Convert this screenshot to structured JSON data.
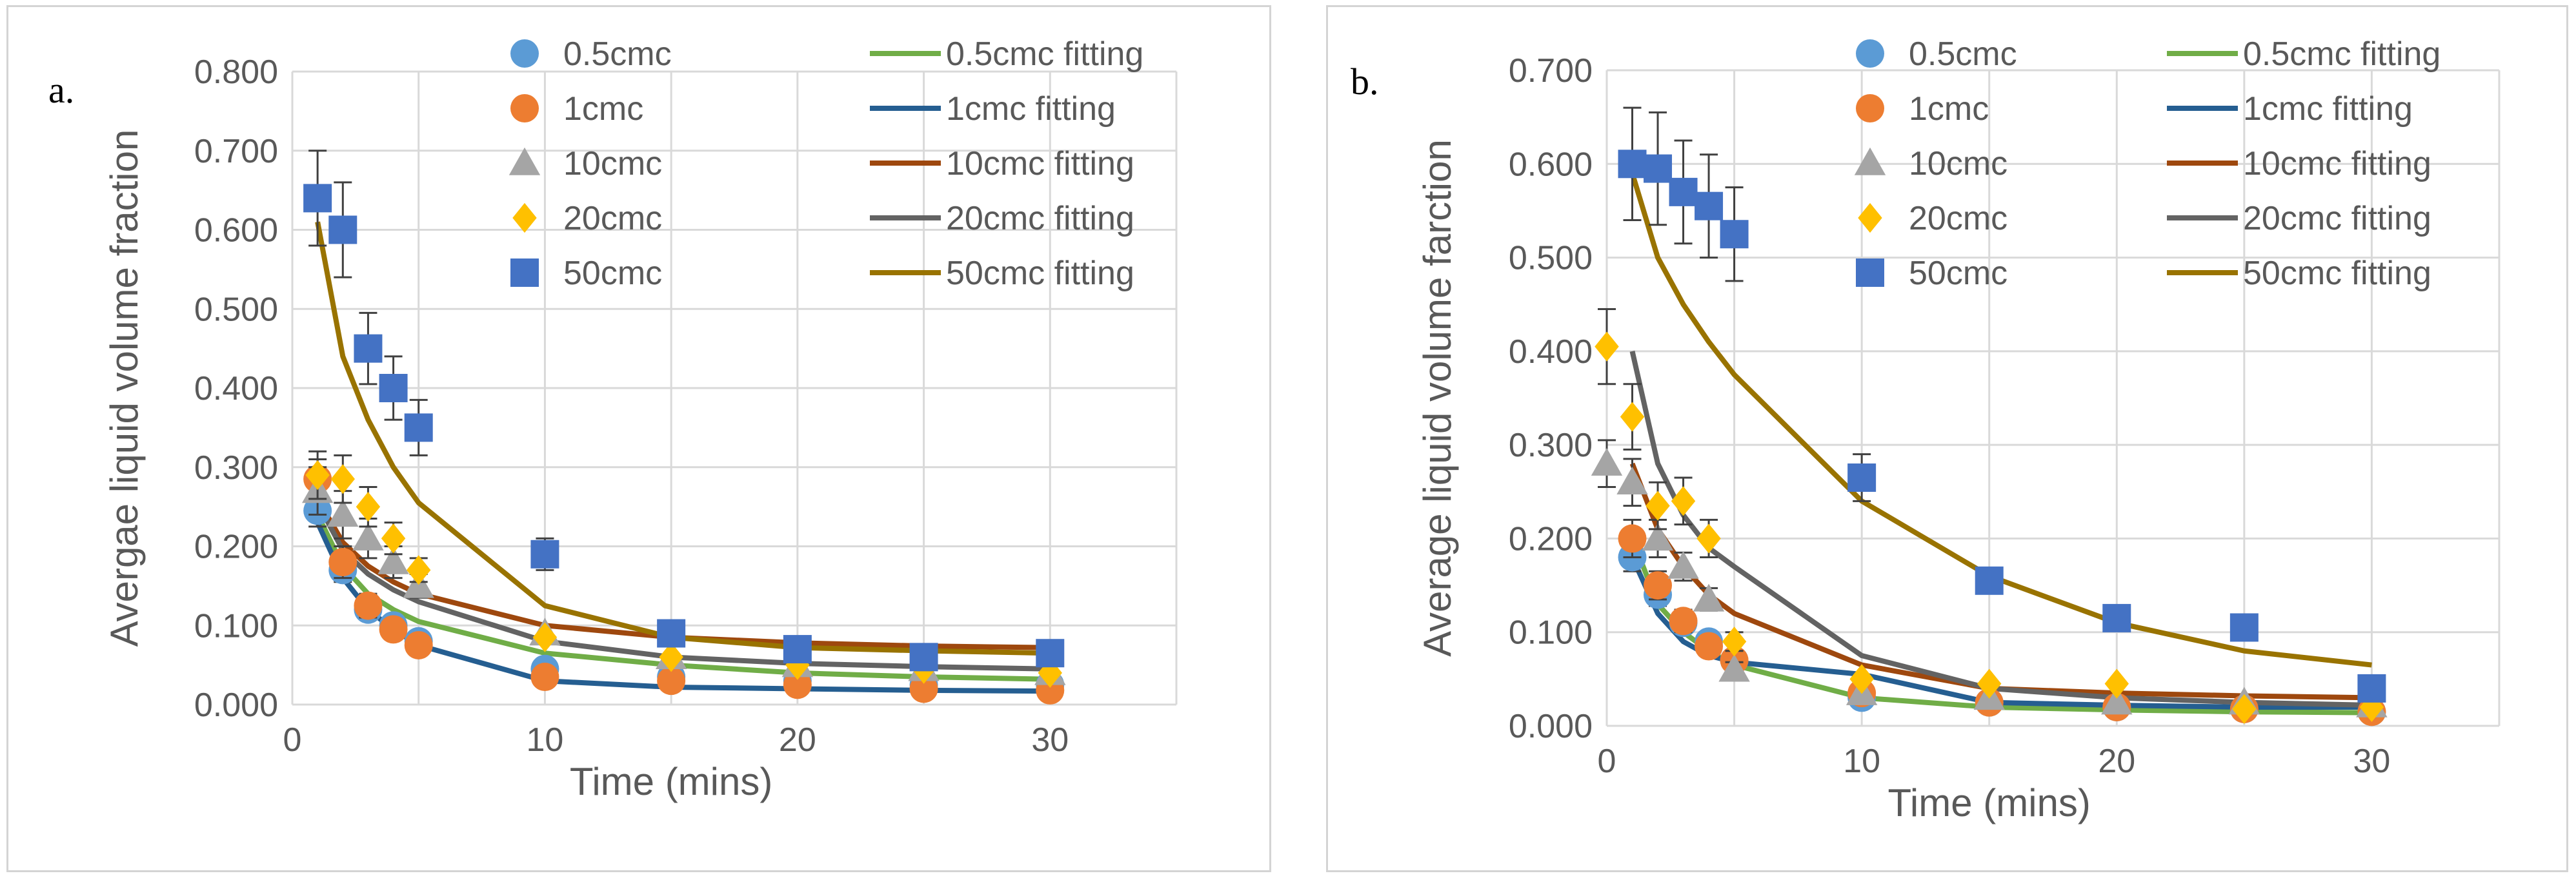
{
  "chart_data": [
    {
      "type": "scatter",
      "panel_label": "a.",
      "xlabel": "Time (mins)",
      "ylabel": "Avergae liquid volume fraction",
      "xlim": [
        0,
        35
      ],
      "ylim": [
        0,
        0.8
      ],
      "x_ticks": [
        "0",
        "10",
        "20",
        "30"
      ],
      "y_ticks": [
        "0.000",
        "0.100",
        "0.200",
        "0.300",
        "0.400",
        "0.500",
        "0.600",
        "0.700",
        "0.800"
      ],
      "grid": "horizontal and vertical",
      "legend_position": "top-right",
      "series": [
        {
          "name": "0.5cmc",
          "marker": "circle",
          "color": "#5b9bd5",
          "x": [
            1,
            2,
            3,
            4,
            5,
            10,
            15,
            20,
            25,
            30
          ],
          "y": [
            0.245,
            0.17,
            0.12,
            0.1,
            0.08,
            0.045,
            0.035,
            0.03,
            0.025,
            0.025
          ],
          "err": [
            0.02,
            0.015,
            0.012,
            0.01,
            0.01,
            0,
            0,
            0,
            0,
            0
          ]
        },
        {
          "name": "1cmc",
          "marker": "circle",
          "color": "#ed7d31",
          "x": [
            1,
            2,
            3,
            4,
            5,
            10,
            15,
            20,
            25,
            30
          ],
          "y": [
            0.285,
            0.18,
            0.125,
            0.095,
            0.075,
            0.035,
            0.03,
            0.025,
            0.02,
            0.018
          ],
          "err": [
            0.025,
            0.02,
            0.015,
            0.01,
            0.01,
            0,
            0,
            0,
            0,
            0
          ]
        },
        {
          "name": "10cmc",
          "marker": "triangle",
          "color": "#a5a5a5",
          "x": [
            1,
            2,
            3,
            4,
            5,
            10,
            15,
            20,
            25,
            30
          ],
          "y": [
            0.27,
            0.24,
            0.21,
            0.18,
            0.15,
            0.09,
            0.06,
            0.05,
            0.045,
            0.04
          ],
          "err": [
            0.03,
            0.03,
            0.025,
            0.02,
            0.015,
            0,
            0,
            0,
            0,
            0
          ]
        },
        {
          "name": "20cmc",
          "marker": "diamond",
          "color": "#ffc000",
          "x": [
            1,
            2,
            3,
            4,
            5,
            10,
            15,
            20,
            25,
            30
          ],
          "y": [
            0.29,
            0.285,
            0.25,
            0.21,
            0.17,
            0.085,
            0.06,
            0.05,
            0.045,
            0.04
          ],
          "err": [
            0.03,
            0.03,
            0.025,
            0.02,
            0.015,
            0,
            0,
            0,
            0,
            0
          ]
        },
        {
          "name": "50cmc",
          "marker": "square",
          "color": "#4472c4",
          "x": [
            1,
            2,
            3,
            4,
            5,
            10,
            15,
            20,
            25,
            30
          ],
          "y": [
            0.64,
            0.6,
            0.45,
            0.4,
            0.35,
            0.19,
            0.09,
            0.07,
            0.06,
            0.065
          ],
          "err": [
            0.06,
            0.06,
            0.045,
            0.04,
            0.035,
            0.02,
            0.01,
            0.01,
            0.01,
            0.01
          ]
        }
      ],
      "fits": [
        {
          "name": "0.5cmc fitting",
          "color": "#70ad47",
          "x": [
            1,
            2,
            3,
            4,
            5,
            10,
            15,
            20,
            25,
            30
          ],
          "y": [
            0.24,
            0.175,
            0.14,
            0.12,
            0.105,
            0.065,
            0.05,
            0.04,
            0.035,
            0.032
          ]
        },
        {
          "name": "1cmc fitting",
          "color": "#255e91",
          "x": [
            1,
            2,
            3,
            4,
            5,
            10,
            15,
            20,
            25,
            30
          ],
          "y": [
            0.23,
            0.16,
            0.12,
            0.095,
            0.075,
            0.03,
            0.022,
            0.02,
            0.018,
            0.017
          ]
        },
        {
          "name": "10cmc fitting",
          "color": "#9e480e",
          "x": [
            1,
            2,
            3,
            4,
            5,
            10,
            15,
            20,
            25,
            30
          ],
          "y": [
            0.26,
            0.205,
            0.175,
            0.155,
            0.14,
            0.1,
            0.085,
            0.078,
            0.074,
            0.072
          ]
        },
        {
          "name": "20cmc fitting",
          "color": "#636363",
          "x": [
            1,
            2,
            3,
            4,
            5,
            10,
            15,
            20,
            25,
            30
          ],
          "y": [
            0.255,
            0.195,
            0.165,
            0.145,
            0.13,
            0.08,
            0.06,
            0.052,
            0.048,
            0.045
          ]
        },
        {
          "name": "50cmc fitting",
          "color": "#997300",
          "x": [
            1,
            2,
            3,
            4,
            5,
            10,
            15,
            20,
            25,
            30
          ],
          "y": [
            0.61,
            0.44,
            0.36,
            0.3,
            0.255,
            0.125,
            0.085,
            0.072,
            0.068,
            0.065
          ]
        }
      ]
    },
    {
      "type": "scatter",
      "panel_label": "b.",
      "xlabel": "Time (mins)",
      "ylabel": "Average liquid volume farction",
      "xlim": [
        0,
        35
      ],
      "ylim": [
        0,
        0.7
      ],
      "x_ticks": [
        "0",
        "10",
        "20",
        "30"
      ],
      "y_ticks": [
        "0.000",
        "0.100",
        "0.200",
        "0.300",
        "0.400",
        "0.500",
        "0.600",
        "0.700"
      ],
      "grid": "horizontal and vertical",
      "legend_position": "top-right",
      "series": [
        {
          "name": "0.5cmc",
          "marker": "circle",
          "color": "#5b9bd5",
          "x": [
            1,
            2,
            3,
            4,
            5,
            10,
            15,
            20,
            25,
            30
          ],
          "y": [
            0.18,
            0.14,
            0.11,
            0.09,
            0.07,
            0.03,
            0.025,
            0.02,
            0.018,
            0.015
          ],
          "err": [
            0.015,
            0.012,
            0.01,
            0.01,
            0.008,
            0,
            0,
            0,
            0,
            0
          ]
        },
        {
          "name": "1cmc",
          "marker": "circle",
          "color": "#ed7d31",
          "x": [
            1,
            2,
            3,
            4,
            5,
            10,
            15,
            20,
            25,
            30
          ],
          "y": [
            0.2,
            0.15,
            0.112,
            0.085,
            0.07,
            0.035,
            0.025,
            0.02,
            0.018,
            0.015
          ],
          "err": [
            0.02,
            0.015,
            0.012,
            0.01,
            0.008,
            0,
            0,
            0,
            0,
            0
          ]
        },
        {
          "name": "10cmc",
          "marker": "triangle",
          "color": "#a5a5a5",
          "x": [
            0,
            1,
            2,
            3,
            4,
            5,
            10,
            15,
            20,
            25,
            30
          ],
          "y": [
            0.28,
            0.26,
            0.2,
            0.17,
            0.135,
            0.06,
            0.035,
            0.03,
            0.025,
            0.025,
            0.022
          ],
          "err": [
            0.025,
            0.025,
            0.02,
            0.015,
            0.012,
            0.008,
            0,
            0,
            0,
            0,
            0
          ]
        },
        {
          "name": "20cmc",
          "marker": "diamond",
          "color": "#ffc000",
          "x": [
            0,
            1,
            2,
            3,
            4,
            5,
            10,
            15,
            20,
            25,
            30
          ],
          "y": [
            0.405,
            0.33,
            0.235,
            0.24,
            0.2,
            0.09,
            0.05,
            0.045,
            0.045,
            0.018,
            0.02
          ],
          "err": [
            0.04,
            0.035,
            0.025,
            0.025,
            0.02,
            0.01,
            0,
            0,
            0,
            0,
            0
          ]
        },
        {
          "name": "50cmc",
          "marker": "square",
          "color": "#4472c4",
          "x": [
            1,
            2,
            3,
            4,
            5,
            10,
            15,
            20,
            25,
            30
          ],
          "y": [
            0.6,
            0.595,
            0.57,
            0.555,
            0.525,
            0.265,
            0.155,
            0.115,
            0.105,
            0.04
          ],
          "err": [
            0.06,
            0.06,
            0.055,
            0.055,
            0.05,
            0.025,
            0.01,
            0.01,
            0.01,
            0.01
          ]
        }
      ],
      "fits": [
        {
          "name": "0.5cmc fitting",
          "color": "#70ad47",
          "x": [
            1,
            2,
            3,
            4,
            5,
            10,
            15,
            20,
            25,
            30
          ],
          "y": [
            0.2,
            0.13,
            0.1,
            0.08,
            0.065,
            0.03,
            0.02,
            0.017,
            0.015,
            0.014
          ]
        },
        {
          "name": "1cmc fitting",
          "color": "#255e91",
          "x": [
            1,
            2,
            3,
            4,
            5,
            10,
            15,
            20,
            25,
            30
          ],
          "y": [
            0.18,
            0.12,
            0.09,
            0.075,
            0.068,
            0.055,
            0.025,
            0.022,
            0.02,
            0.02
          ]
        },
        {
          "name": "10cmc fitting",
          "color": "#9e480e",
          "x": [
            1,
            2,
            3,
            4,
            5,
            10,
            15,
            20,
            25,
            30
          ],
          "y": [
            0.28,
            0.21,
            0.17,
            0.14,
            0.12,
            0.065,
            0.04,
            0.035,
            0.032,
            0.03
          ]
        },
        {
          "name": "20cmc fitting",
          "color": "#636363",
          "x": [
            1,
            2,
            3,
            4,
            5,
            10,
            15,
            20,
            25,
            30
          ],
          "y": [
            0.4,
            0.28,
            0.225,
            0.19,
            0.17,
            0.075,
            0.04,
            0.03,
            0.025,
            0.022
          ]
        },
        {
          "name": "50cmc fitting",
          "color": "#997300",
          "x": [
            1,
            2,
            3,
            4,
            5,
            10,
            15,
            20,
            25,
            30
          ],
          "y": [
            0.59,
            0.5,
            0.45,
            0.41,
            0.375,
            0.24,
            0.16,
            0.11,
            0.08,
            0.065
          ]
        }
      ]
    }
  ]
}
